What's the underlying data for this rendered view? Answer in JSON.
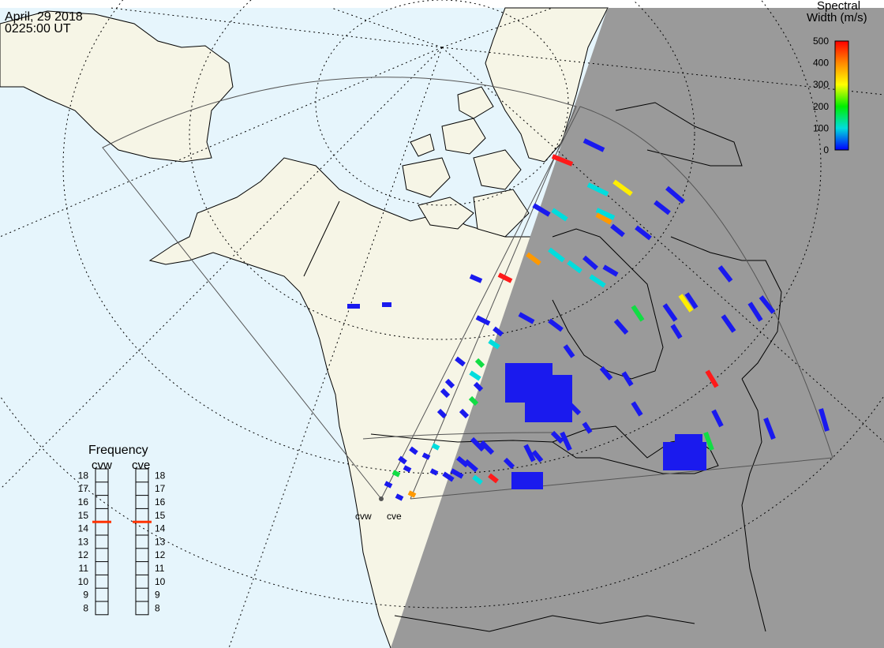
{
  "header": {
    "date": "April, 29 2018",
    "time": "0225:00 UT"
  },
  "colorbar": {
    "title_line1": "Spectral",
    "title_line2": "Width (m/s)",
    "ticks": [
      "500",
      "400",
      "300",
      "200",
      "100",
      "0"
    ],
    "stops": [
      "#ff0000",
      "#ff8800",
      "#ffff00",
      "#00ee00",
      "#00dddd",
      "#0000ff"
    ]
  },
  "frequency": {
    "title": "Frequency",
    "radars": [
      {
        "name": "cvw",
        "value": 15
      },
      {
        "name": "cve",
        "value": 15
      }
    ],
    "scale": [
      "18",
      "17",
      "16",
      "15",
      "14",
      "13",
      "12",
      "11",
      "10",
      "9",
      "8"
    ]
  },
  "radars": [
    {
      "code": "cvw",
      "label": "cvw"
    },
    {
      "code": "cve",
      "label": "cve"
    }
  ],
  "colors": {
    "ocean": "#e6f5fc",
    "land": "#f6f5e6",
    "night": "#9a9a9a",
    "coast": "#000000",
    "grid": "#000000",
    "fov": "#555555",
    "marker": "#ff3300"
  }
}
